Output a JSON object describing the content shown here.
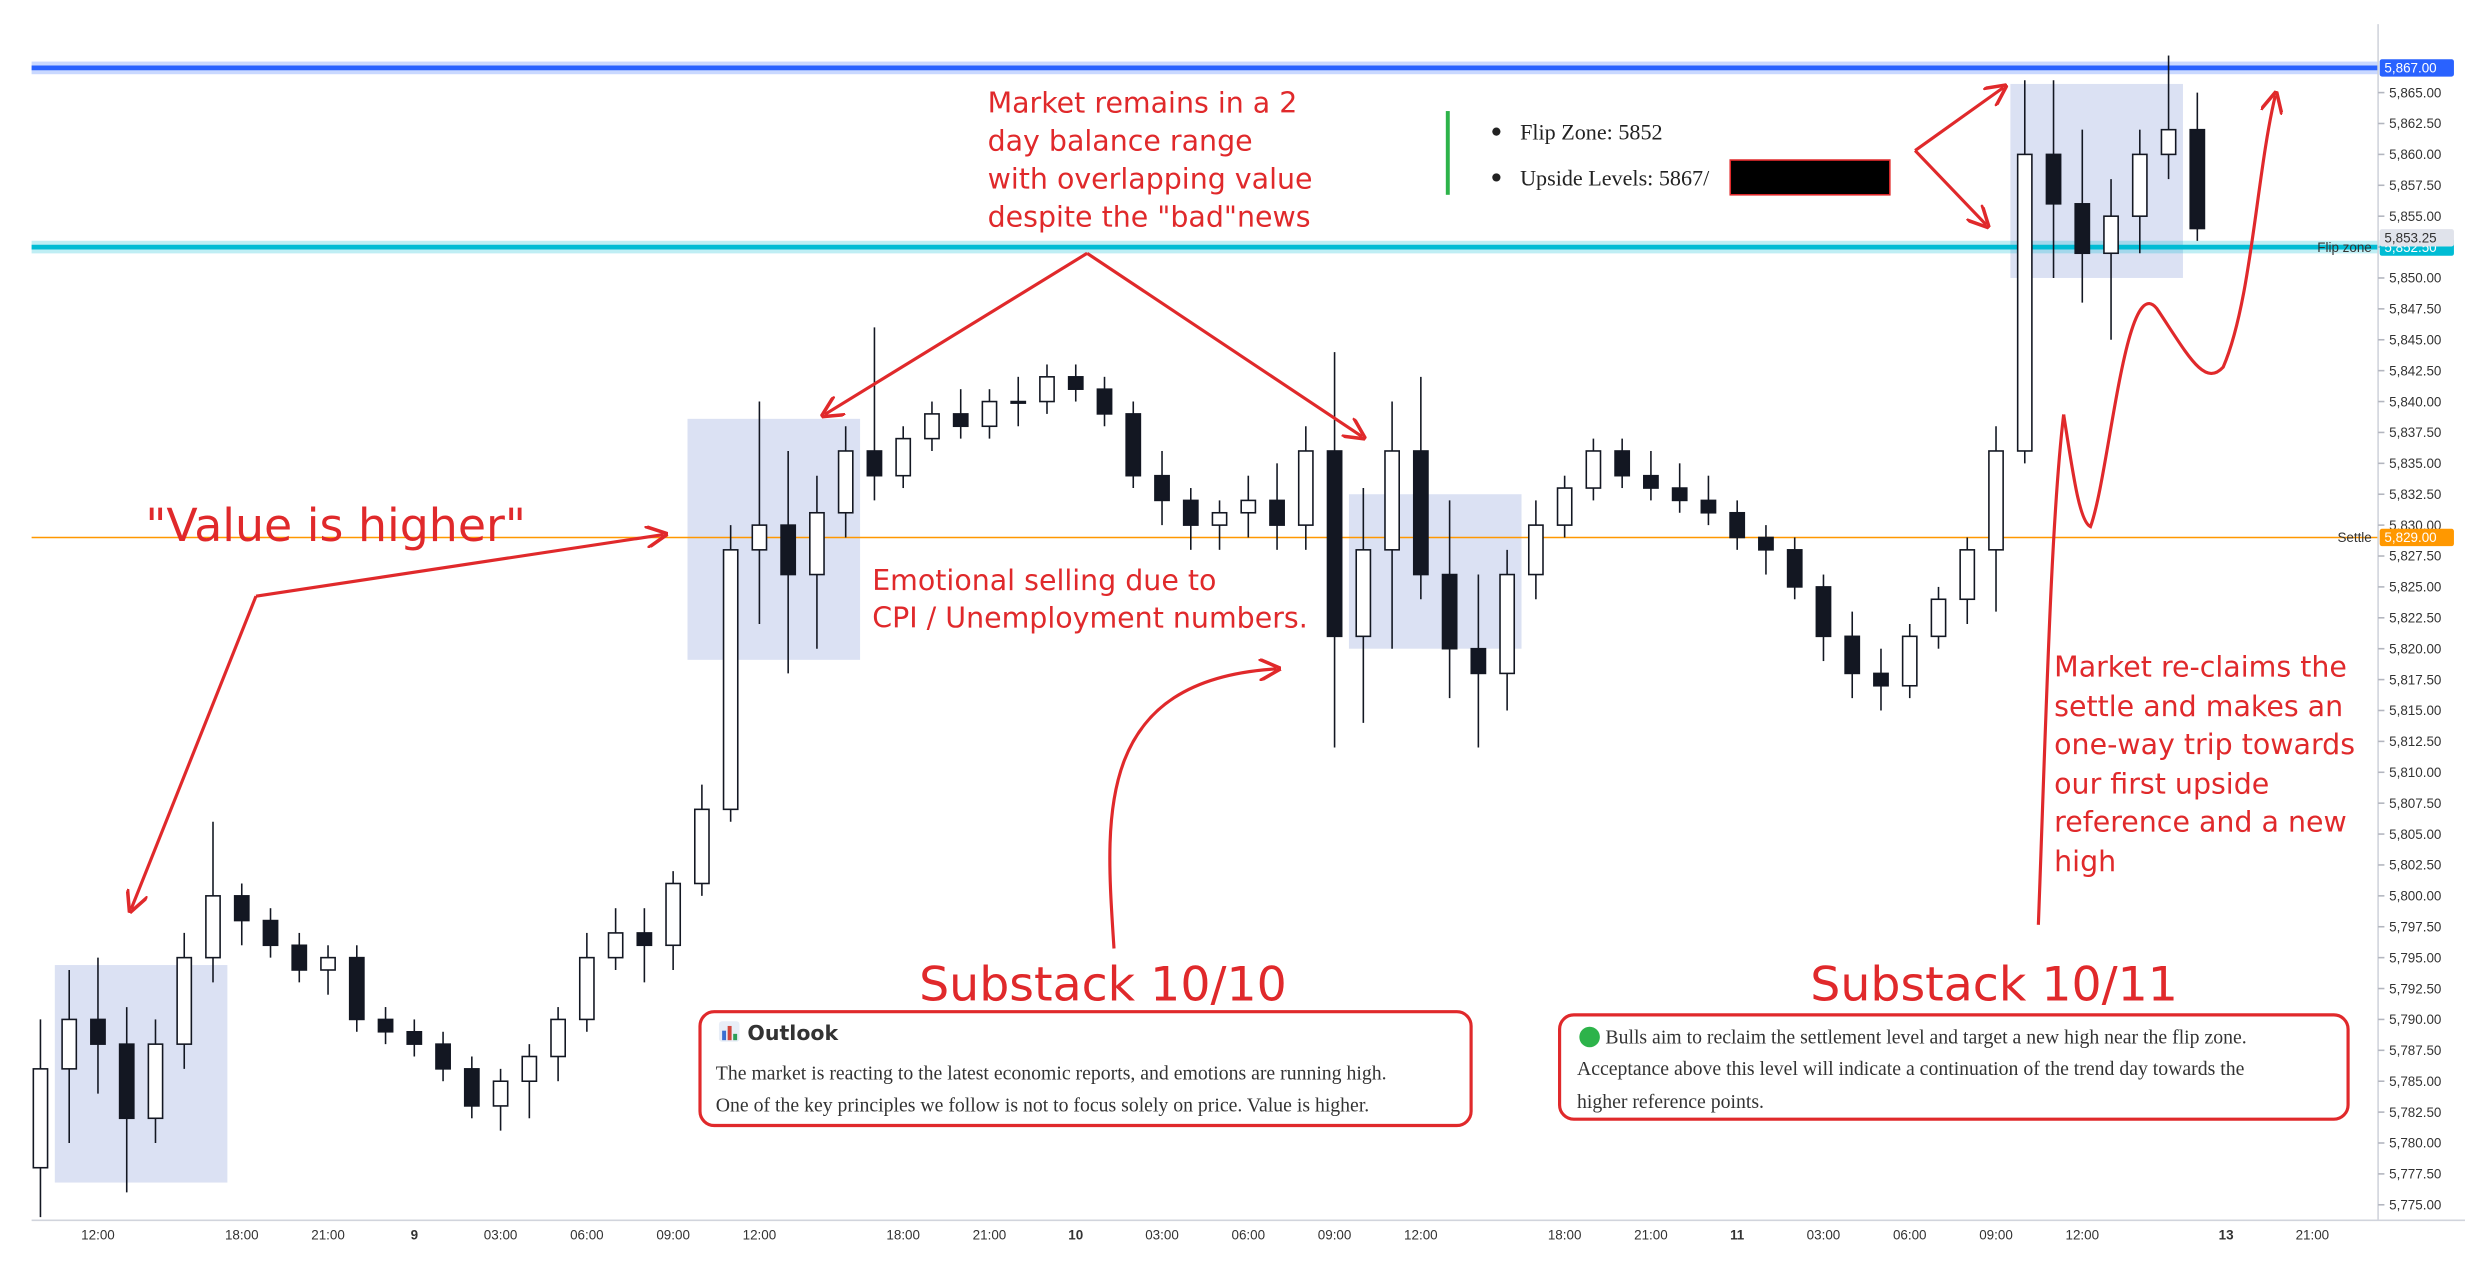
{
  "chart_data": {
    "type": "candlestick",
    "categories": [
      null,
      null,
      "12:00",
      null,
      null,
      null,
      null,
      "18:00",
      null,
      null,
      "21:00",
      null,
      null,
      "9",
      null,
      null,
      "03:00",
      null,
      null,
      "06:00",
      null,
      null,
      "09:00",
      null,
      null,
      "12:00",
      null,
      null,
      null,
      null,
      "18:00",
      null,
      null,
      "21:00",
      null,
      null,
      "10",
      null,
      null,
      "03:00",
      null,
      null,
      "06:00",
      null,
      null,
      "09:00",
      null,
      null,
      "12:00",
      null,
      null,
      null,
      null,
      "18:00",
      null,
      null,
      "21:00",
      null,
      null,
      "11",
      null,
      null,
      "03:00",
      null,
      null,
      "06:00",
      null,
      null,
      "09:00",
      null,
      null,
      "12:00",
      null,
      null,
      null,
      null,
      "13",
      null,
      null,
      "21:00"
    ],
    "open": [
      5778,
      5786,
      5790,
      5788,
      5782,
      5788,
      5795,
      5800,
      5798,
      5796,
      5794,
      5795,
      5790,
      5789,
      5788,
      5786,
      5783,
      5785,
      5787,
      5790,
      5795,
      5797,
      5796,
      5801,
      5807,
      5828,
      5830,
      5826,
      5831,
      5836,
      5834,
      5837,
      5839,
      5838,
      5840,
      5840,
      5842,
      5841,
      5839,
      5834,
      5832,
      5830,
      5831,
      5832,
      5830,
      5836,
      5821,
      5828,
      5836,
      5826,
      5820,
      5818,
      5826,
      5830,
      5833,
      5836,
      5834,
      5833,
      5832,
      5831,
      5829,
      5828,
      5825,
      5821,
      5818,
      5817,
      5821,
      5824,
      5828,
      5836,
      5860,
      5856,
      5852,
      5855,
      5860,
      5862,
      null,
      null,
      null,
      null
    ],
    "high": [
      5790,
      5794,
      5795,
      5791,
      5790,
      5797,
      5806,
      5801,
      5799,
      5797,
      5796,
      5796,
      5791,
      5790,
      5789,
      5787,
      5786,
      5788,
      5791,
      5797,
      5799,
      5799,
      5802,
      5809,
      5830,
      5840,
      5836,
      5834,
      5838,
      5846,
      5838,
      5840,
      5841,
      5841,
      5842,
      5843,
      5843,
      5842,
      5840,
      5836,
      5833,
      5832,
      5834,
      5835,
      5838,
      5844,
      5833,
      5840,
      5842,
      5832,
      5826,
      5828,
      5832,
      5834,
      5837,
      5837,
      5836,
      5835,
      5834,
      5832,
      5830,
      5829,
      5826,
      5823,
      5820,
      5822,
      5825,
      5829,
      5838,
      5866,
      5866,
      5862,
      5858,
      5862,
      5868,
      5865,
      null,
      null,
      null,
      null
    ],
    "low": [
      5774,
      5780,
      5784,
      5776,
      5780,
      5786,
      5793,
      5796,
      5795,
      5793,
      5792,
      5789,
      5788,
      5787,
      5785,
      5782,
      5781,
      5782,
      5785,
      5789,
      5794,
      5793,
      5794,
      5800,
      5806,
      5822,
      5818,
      5820,
      5829,
      5832,
      5833,
      5836,
      5837,
      5837,
      5838,
      5839,
      5840,
      5838,
      5833,
      5830,
      5828,
      5828,
      5829,
      5828,
      5828,
      5812,
      5814,
      5820,
      5824,
      5816,
      5812,
      5815,
      5824,
      5829,
      5832,
      5833,
      5832,
      5831,
      5830,
      5828,
      5826,
      5824,
      5819,
      5816,
      5815,
      5816,
      5820,
      5822,
      5823,
      5835,
      5850,
      5848,
      5845,
      5852,
      5858,
      5853,
      null,
      null,
      null,
      null
    ],
    "close": [
      5786,
      5790,
      5788,
      5782,
      5788,
      5795,
      5800,
      5798,
      5796,
      5794,
      5795,
      5790,
      5789,
      5788,
      5786,
      5783,
      5785,
      5787,
      5790,
      5795,
      5797,
      5796,
      5801,
      5807,
      5828,
      5830,
      5826,
      5831,
      5836,
      5834,
      5837,
      5839,
      5838,
      5840,
      5840,
      5842,
      5841,
      5839,
      5834,
      5832,
      5830,
      5831,
      5832,
      5830,
      5836,
      5821,
      5828,
      5836,
      5826,
      5820,
      5818,
      5826,
      5830,
      5833,
      5836,
      5834,
      5833,
      5832,
      5831,
      5829,
      5828,
      5825,
      5821,
      5818,
      5817,
      5821,
      5824,
      5828,
      5836,
      5860,
      5856,
      5852,
      5855,
      5860,
      5862,
      5854,
      null,
      null,
      null,
      null
    ],
    "up_color": "#ffffff",
    "down_color": "#131722",
    "ylim": [
      5774,
      5869.9
    ],
    "yticks": [
      {
        "value": 5775,
        "label": "5,775.00"
      },
      {
        "value": 5777.5,
        "label": "5,777.50"
      },
      {
        "value": 5780,
        "label": "5,780.00"
      },
      {
        "value": 5782.5,
        "label": "5,782.50"
      },
      {
        "value": 5785,
        "label": "5,785.00"
      },
      {
        "value": 5787.5,
        "label": "5,787.50"
      },
      {
        "value": 5790,
        "label": "5,790.00"
      },
      {
        "value": 5792.5,
        "label": "5,792.50"
      },
      {
        "value": 5795,
        "label": "5,795.00"
      },
      {
        "value": 5797.5,
        "label": "5,797.50"
      },
      {
        "value": 5800,
        "label": "5,800.00"
      },
      {
        "value": 5802.5,
        "label": "5,802.50"
      },
      {
        "value": 5805,
        "label": "5,805.00"
      },
      {
        "value": 5807.5,
        "label": "5,807.50"
      },
      {
        "value": 5810,
        "label": "5,810.00"
      },
      {
        "value": 5812.5,
        "label": "5,812.50"
      },
      {
        "value": 5815,
        "label": "5,815.00"
      },
      {
        "value": 5817.5,
        "label": "5,817.50"
      },
      {
        "value": 5820,
        "label": "5,820.00"
      },
      {
        "value": 5822.5,
        "label": "5,822.50"
      },
      {
        "value": 5825,
        "label": "5,825.00"
      },
      {
        "value": 5827.5,
        "label": "5,827.50"
      },
      {
        "value": 5830,
        "label": "5,830.00"
      },
      {
        "value": 5832.5,
        "label": "5,832.50"
      },
      {
        "value": 5835,
        "label": "5,835.00"
      },
      {
        "value": 5837.5,
        "label": "5,837.50"
      },
      {
        "value": 5840,
        "label": "5,840.00"
      },
      {
        "value": 5842.5,
        "label": "5,842.50"
      },
      {
        "value": 5845,
        "label": "5,845.00"
      },
      {
        "value": 5847.5,
        "label": "5,847.50"
      },
      {
        "value": 5850,
        "label": "5,850.00"
      },
      {
        "value": 5852.5,
        "label": "5,852.50"
      },
      {
        "value": 5855,
        "label": "5,855.00"
      },
      {
        "value": 5857.5,
        "label": "5,857.50"
      },
      {
        "value": 5860,
        "label": "5,860.00"
      },
      {
        "value": 5862.5,
        "label": "5,862.50"
      },
      {
        "value": 5865,
        "label": "5,865.00"
      }
    ],
    "levels": [
      {
        "value": 5867,
        "label": "5,867.00",
        "color": "#2962ff"
      },
      {
        "value": 5852.5,
        "label": "5,852.50",
        "name": "Flip zone",
        "color": "#00bcd4"
      },
      {
        "value": 5829,
        "label": "5,829.00",
        "name": "Settle",
        "color": "#ff9800"
      }
    ],
    "price_tags": [
      {
        "value": 5853.25,
        "label": "5,853.25"
      }
    ],
    "value_areas": [
      {
        "start": 1,
        "end": 6,
        "low": 5776.8,
        "high": 5794.4
      },
      {
        "start": 23,
        "end": 28,
        "low": 5819.1,
        "high": 5838.6
      },
      {
        "start": 46,
        "end": 51,
        "low": 5820.0,
        "high": 5832.5
      },
      {
        "start": 69,
        "end": 74,
        "low": 5850.0,
        "high": 5865.7
      }
    ],
    "annotations": {
      "balance": [
        "Market remains in a 2",
        "day balance range",
        "with overlapping value",
        "despite the \"bad\"news"
      ],
      "value": "\"Value is higher\"",
      "emotional": [
        "Emotional selling due to",
        "CPI / Unemployment numbers."
      ],
      "reclaim": [
        "Market re-claims the",
        "settle and makes an",
        "one-way trip towards",
        "our first upside",
        "reference and a new",
        "high"
      ],
      "substack_1": "Substack 10/10",
      "substack_2": "Substack 10/11"
    },
    "outlook": {
      "title": "Outlook",
      "lines": [
        "The market is reacting to the latest economic reports, and emotions are running high.",
        "One of the key principles we follow is not to focus solely on price. Value is higher."
      ]
    },
    "bulls": {
      "lines": [
        "Bulls aim to reclaim the settlement level and target a new high near the flip zone.",
        "Acceptance above this level will indicate a continuation of the trend day towards the",
        "higher reference points."
      ]
    },
    "flip_box": [
      "Flip Zone: 5852",
      "Upside Levels: 5867/"
    ]
  }
}
